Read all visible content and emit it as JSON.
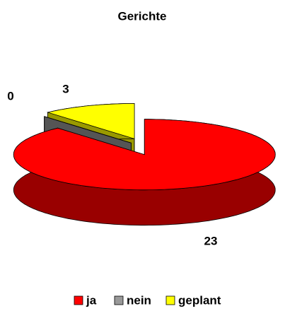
{
  "chart_data": {
    "type": "pie3d",
    "title": "Gerichte",
    "categories": [
      "ja",
      "nein",
      "geplant"
    ],
    "values": [
      23,
      0,
      3
    ],
    "colors": [
      "#ff0000",
      "#999999",
      "#ffff00"
    ],
    "side_colors": [
      "#990000",
      "#555555",
      "#999900"
    ],
    "legend": "bottom"
  }
}
